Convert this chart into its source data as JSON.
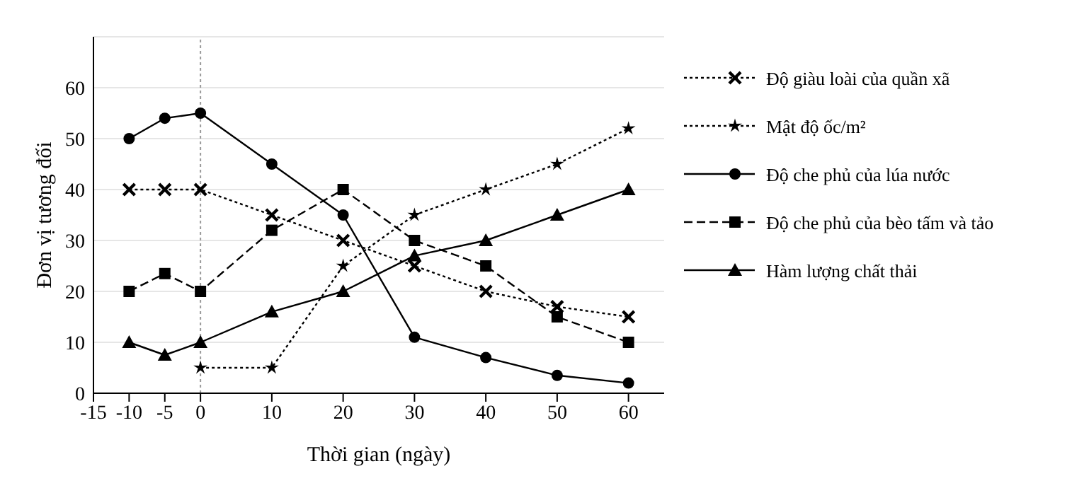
{
  "chart_data": {
    "type": "line",
    "xlabel": "Thời gian (ngày)",
    "ylabel": "Đơn vị tương đối",
    "x": [
      -10,
      -5,
      0,
      10,
      20,
      30,
      40,
      50,
      60
    ],
    "xlim": [
      -15,
      65
    ],
    "xticks": [
      -15,
      -10,
      -5,
      0,
      10,
      20,
      30,
      40,
      50,
      60
    ],
    "ylim": [
      0,
      70
    ],
    "yticks": [
      0,
      10,
      20,
      30,
      40,
      50,
      60
    ],
    "grid": "y",
    "legend": "right",
    "ref_lines": [
      {
        "axis": "x",
        "value": 0,
        "color": "#999999",
        "line_style": "dotted"
      }
    ],
    "series": [
      {
        "name": "Độ giàu loài của quần xã",
        "color": "#000000",
        "marker": "cross",
        "line_style": "dotted",
        "values": [
          40,
          40,
          40,
          35,
          30,
          25,
          20,
          17,
          15
        ]
      },
      {
        "name": "Mật độ ốc/m²",
        "color": "#000000",
        "marker": "star",
        "line_style": "dotted",
        "values": [
          null,
          null,
          5,
          5,
          25,
          35,
          40,
          45,
          52
        ]
      },
      {
        "name": "Độ che phủ của lúa nước",
        "color": "#000000",
        "marker": "circle",
        "line_style": "solid",
        "values": [
          50,
          54,
          55,
          45,
          35,
          11,
          7,
          3.5,
          2
        ]
      },
      {
        "name": "Độ che phủ của bèo tấm và tảo",
        "color": "#000000",
        "marker": "square",
        "line_style": "dashed",
        "values": [
          20,
          23.5,
          20,
          32,
          40,
          30,
          25,
          15,
          10
        ]
      },
      {
        "name": "Hàm lượng chất thải",
        "color": "#000000",
        "marker": "triangle",
        "line_style": "solid",
        "values": [
          10,
          7.5,
          10,
          16,
          20,
          27,
          30,
          35,
          40
        ]
      }
    ]
  }
}
